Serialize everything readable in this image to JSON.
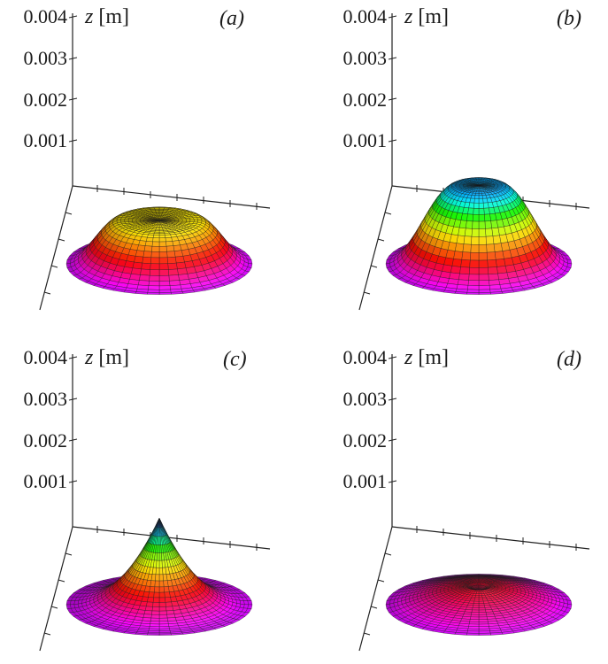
{
  "figure": {
    "panel_labels": [
      "(a)",
      "(b)",
      "(c)",
      "(d)"
    ],
    "z_axis_label_var": "z",
    "z_axis_label_unit": "[m]"
  },
  "chart_data": [
    {
      "type": "surface",
      "panel": "(a)",
      "zlabel": "z [m]",
      "z_ticks": [
        "0.001",
        "0.002",
        "0.003",
        "0.004"
      ],
      "zlim": [
        0,
        0.004
      ],
      "shape": "flat-topped cone",
      "peak_z": 0.00105,
      "top_radius_fraction": 0.42,
      "dip_z": 0
    },
    {
      "type": "surface",
      "panel": "(b)",
      "zlabel": "z [m]",
      "z_ticks": [
        "0.001",
        "0.002",
        "0.003",
        "0.004"
      ],
      "zlim": [
        0,
        0.004
      ],
      "shape": "flat-topped cone",
      "peak_z": 0.0019,
      "top_radius_fraction": 0.24,
      "dip_z": 0
    },
    {
      "type": "surface",
      "panel": "(c)",
      "zlabel": "z [m]",
      "z_ticks": [
        "0.001",
        "0.002",
        "0.003",
        "0.004"
      ],
      "zlim": [
        0,
        0.004
      ],
      "shape": "cusp",
      "peak_z": 0.0021,
      "top_radius_fraction": 0.02,
      "dip_z": 0
    },
    {
      "type": "surface",
      "panel": "(d)",
      "zlabel": "z [m]",
      "z_ticks": [
        "0.001",
        "0.002",
        "0.003",
        "0.004"
      ],
      "zlim": [
        0,
        0.004
      ],
      "shape": "low dome with central crater",
      "peak_z": 0.00045,
      "top_radius_fraction": 0.16,
      "dip_z": 0.0003
    }
  ]
}
